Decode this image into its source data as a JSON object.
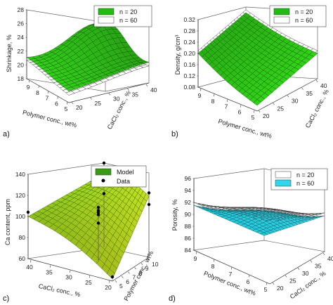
{
  "chart_data": [
    {
      "id": "a",
      "type": "surface",
      "panel_label": "a)",
      "zlabel": "Shrinkage, %",
      "xlabel": "Polymer conc., wt%",
      "ylabel": "CaCl₂ conc., %",
      "x_ticks": [
        "5",
        "6",
        "7",
        "8",
        "9"
      ],
      "y_ticks": [
        "20",
        "25",
        "30",
        "35",
        "40"
      ],
      "z_ticks": [
        "18",
        "20",
        "22",
        "24",
        "26",
        "28"
      ],
      "zlim": [
        18,
        28
      ],
      "legend": [
        {
          "name": "n = 20",
          "color": "#22bb11"
        },
        {
          "name": "n = 60",
          "color": "#ffffff"
        }
      ],
      "series": [
        {
          "name": "n = 20",
          "corners": {
            "near_front": 19.6,
            "near_right": 20.3,
            "far_left": 20.4,
            "far_right": 19.2,
            "peak": 27.8
          }
        },
        {
          "name": "n = 60",
          "corners": {
            "near_front": 19.0,
            "near_right": 19.8,
            "far_left": 20.0,
            "far_right": 19.5,
            "peak": 27.0
          }
        }
      ]
    },
    {
      "id": "b",
      "type": "surface",
      "panel_label": "b)",
      "zlabel": "Density, g/cm³",
      "xlabel": "Polymer conc., wt%",
      "ylabel": "CaCl₂ conc., %",
      "x_ticks": [
        "5",
        "6",
        "7",
        "8",
        "9"
      ],
      "y_ticks": [
        "20",
        "25",
        "30",
        "35",
        "40"
      ],
      "z_ticks": [
        "0.08",
        "0.12",
        "0.16",
        "0.20",
        "0.24",
        "0.28",
        "0.32"
      ],
      "zlim": [
        0.08,
        0.32
      ],
      "legend": [
        {
          "name": "n = 20",
          "color": "#22bb11"
        },
        {
          "name": "n = 60",
          "color": "#ffffff"
        }
      ],
      "series": [
        {
          "name": "n = 20",
          "corners": {
            "x9_y20": 0.2,
            "x5_y20": 0.1,
            "x9_y40": 0.3,
            "x5_y40": 0.17
          }
        },
        {
          "name": "n = 60",
          "corners": {
            "x9_y20": 0.21,
            "x5_y20": 0.11,
            "x9_y40": 0.31,
            "x5_y40": 0.18
          }
        }
      ]
    },
    {
      "id": "c",
      "type": "surface",
      "panel_label": "c)",
      "zlabel": "Ca content, ppm",
      "xlabel": "CaCl₂ conc., %",
      "ylabel": "Polymer conc., wt%",
      "x_ticks": [
        "40",
        "35",
        "30",
        "25",
        "20"
      ],
      "y_ticks": [
        "5",
        "6",
        "7",
        "8",
        "9",
        "10"
      ],
      "z_ticks": [
        "60",
        "80",
        "100",
        "120",
        "140"
      ],
      "zlim": [
        60,
        140
      ],
      "legend": [
        {
          "name": "Model",
          "color": "#3a9a18"
        },
        {
          "name": "Data",
          "color": "#000000"
        }
      ],
      "series": [
        {
          "name": "Model",
          "corners": {
            "x40_y5": 100,
            "x20_y5": 62,
            "x40_y10": 130,
            "x20_y10": 118
          }
        },
        {
          "name": "Data",
          "points": [
            {
              "x": 40,
              "y": 5,
              "z": 104
            },
            {
              "x": 40,
              "y": 10,
              "z": 111
            },
            {
              "x": 30,
              "y": 7.5,
              "z": 111
            },
            {
              "x": 30,
              "y": 7.5,
              "z": 108
            },
            {
              "x": 30,
              "y": 7.5,
              "z": 106
            },
            {
              "x": 30,
              "y": 7.5,
              "z": 104
            },
            {
              "x": 30,
              "y": 7.5,
              "z": 96
            },
            {
              "x": 40,
              "y": 10,
              "z": 140
            },
            {
              "x": 20,
              "y": 10,
              "z": 121
            },
            {
              "x": 20,
              "y": 10,
              "z": 110
            },
            {
              "x": 20,
              "y": 5,
              "z": 64
            }
          ]
        }
      ]
    },
    {
      "id": "d",
      "type": "surface",
      "panel_label": "d)",
      "zlabel": "Porosity, %",
      "xlabel": "Polymer conc., wt%",
      "ylabel": "CaCl₂ conc., %",
      "x_ticks": [
        "5",
        "6",
        "7",
        "8",
        "9"
      ],
      "y_ticks": [
        "20",
        "25",
        "30",
        "35",
        "40"
      ],
      "z_ticks": [
        "84",
        "86",
        "88",
        "90",
        "92",
        "94",
        "96"
      ],
      "zlim": [
        84,
        96
      ],
      "legend": [
        {
          "name": "n = 20",
          "color": "#ffffff"
        },
        {
          "name": "n = 60",
          "color": "#33d6e6"
        }
      ],
      "series": [
        {
          "name": "n = 20",
          "corners": {
            "x9_y40": 92.0,
            "x5_y40": 95.0,
            "x9_y20": 85.2,
            "x5_y20": 90.5
          }
        },
        {
          "name": "n = 60",
          "corners": {
            "x9_y40": 91.5,
            "x5_y40": 94.5,
            "x9_y20": 84.8,
            "x5_y20": 90.0
          }
        }
      ]
    }
  ]
}
